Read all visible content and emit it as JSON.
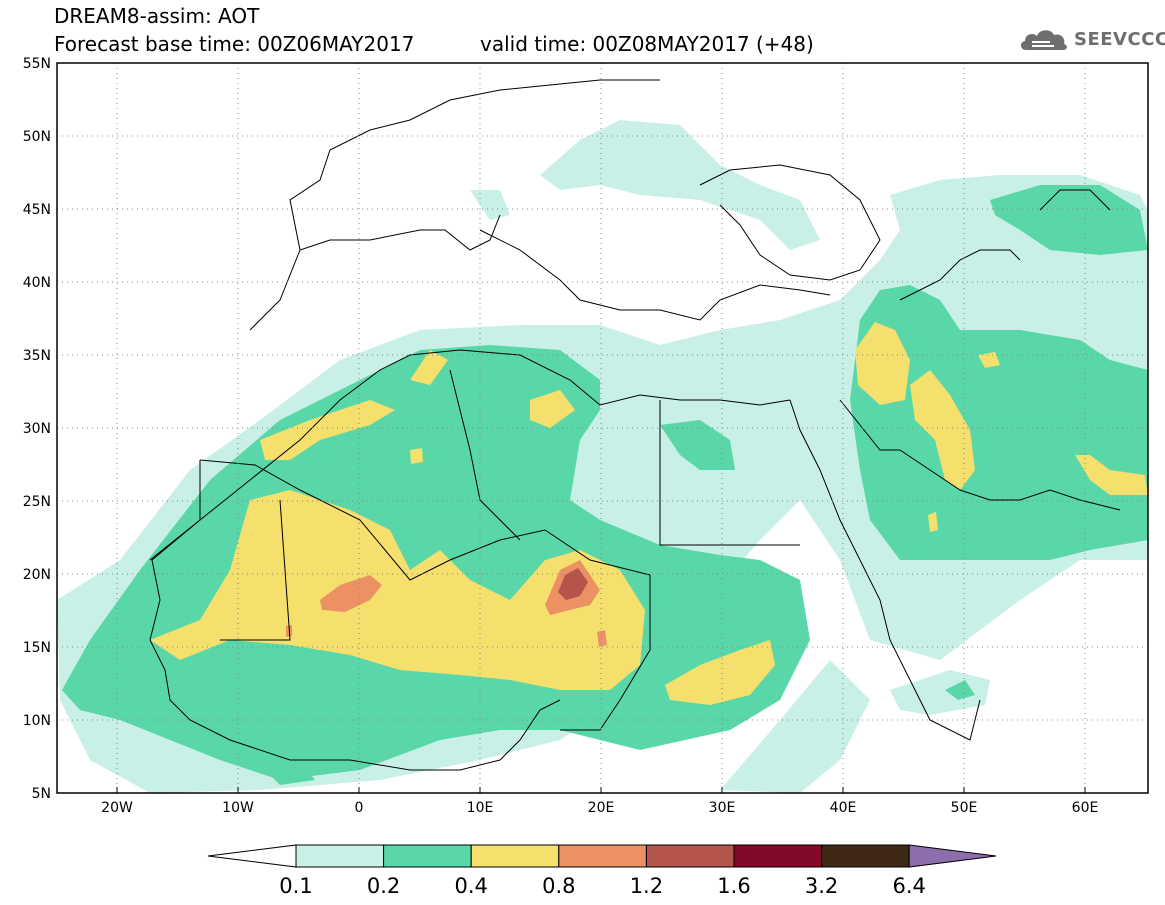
{
  "header": {
    "title_line1": "DREAM8-assim: AOT",
    "forecast_base": "Forecast base time: 00Z06MAY2017",
    "valid_time": "valid time: 00Z08MAY2017 (+48)"
  },
  "logo": {
    "text": "SEEVCCC",
    "icon": "cloud-icon"
  },
  "map": {
    "lat_labels": [
      "55N",
      "50N",
      "45N",
      "40N",
      "35N",
      "30N",
      "25N",
      "20N",
      "15N",
      "10N",
      "5N"
    ],
    "lon_labels": [
      "20W",
      "10W",
      "0",
      "10E",
      "20E",
      "30E",
      "40E",
      "50E",
      "60E"
    ],
    "lon_range": [
      -25,
      65
    ],
    "lat_range": [
      5,
      55
    ],
    "grid": "dotted",
    "field": "aerosol optical thickness"
  },
  "colorbar": {
    "levels": [
      "0.1",
      "0.2",
      "0.4",
      "0.8",
      "1.2",
      "1.6",
      "3.2",
      "6.4"
    ],
    "colors": [
      "#c8f0e6",
      "#5ad7a8",
      "#f5e06e",
      "#eb9164",
      "#b4554b",
      "#820a28",
      "#3c2814",
      "#8c6eaa"
    ],
    "below_color": "#ffffff"
  }
}
